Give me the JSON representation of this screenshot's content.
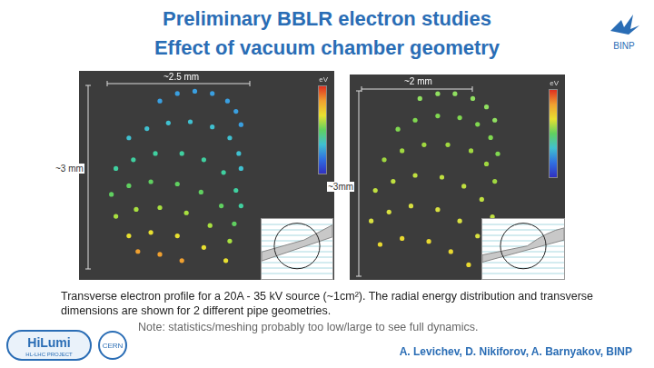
{
  "title": [
    "Preliminary BBLR electron studies",
    "Effect of vacuum chamber geometry"
  ],
  "logo": "BINP",
  "chart_data": [
    {
      "type": "scatter",
      "xlim": [
        0,
        4.4
      ],
      "ylim": [
        0,
        3.5
      ],
      "tick_labels": false,
      "grid": false,
      "marker": "circle",
      "annotations": {
        "width": "~2.5 mm",
        "height": "~3 mm",
        "colorbar": "eV"
      },
      "series": [
        {
          "color": "#3a9fe0",
          "x": [
            1.37,
            1.68,
            1.99,
            2.3,
            2.57,
            2.72,
            2.81
          ],
          "values": [
            3.04,
            3.17,
            3.21,
            3.17,
            3.04,
            2.86,
            2.63
          ]
        },
        {
          "color": "#40c0d0",
          "x": [
            0.82,
            1.14,
            1.52,
            1.91,
            2.3,
            2.61,
            2.77,
            2.81
          ],
          "values": [
            2.4,
            2.56,
            2.66,
            2.68,
            2.59,
            2.4,
            2.13,
            1.87
          ]
        },
        {
          "color": "#40d0a0",
          "x": [
            0.59,
            0.9,
            1.29,
            1.76,
            2.15,
            2.5,
            2.72,
            2.81
          ],
          "values": [
            1.87,
            2.02,
            2.13,
            2.13,
            2.02,
            1.8,
            1.49,
            1.22
          ]
        },
        {
          "color": "#60d060",
          "x": [
            0.51,
            0.82,
            1.21,
            1.68,
            2.1,
            2.46,
            2.69
          ],
          "values": [
            1.42,
            1.57,
            1.64,
            1.6,
            1.46,
            1.22,
            0.91
          ]
        },
        {
          "color": "#a8e040",
          "x": [
            0.59,
            0.95,
            1.37,
            1.84,
            2.26,
            2.61
          ],
          "values": [
            1.04,
            1.16,
            1.19,
            1.1,
            0.88,
            0.61
          ]
        },
        {
          "color": "#e8e030",
          "x": [
            0.82,
            1.21,
            1.68,
            2.15,
            2.54
          ],
          "values": [
            0.7,
            0.76,
            0.7,
            0.5,
            0.27
          ]
        },
        {
          "color": "#f0a030",
          "x": [
            0.98,
            1.37,
            1.76
          ],
          "values": [
            0.43,
            0.38,
            0.27
          ]
        }
      ]
    },
    {
      "type": "scatter",
      "xlim": [
        0,
        3.5
      ],
      "ylim": [
        0,
        3.3
      ],
      "tick_labels": false,
      "grid": false,
      "marker": "circle",
      "annotations": {
        "width": "~2 mm",
        "height": "~3mm",
        "colorbar": "eV"
      },
      "series": [
        {
          "color": "#90e060",
          "x": [
            1.12,
            1.42,
            1.71,
            2.01,
            2.24,
            2.38
          ],
          "values": [
            2.96,
            3.04,
            3.04,
            2.96,
            2.82,
            2.6
          ]
        },
        {
          "color": "#80d850",
          "x": [
            0.75,
            1.04,
            1.42,
            1.79,
            2.09,
            2.31,
            2.43
          ],
          "values": [
            2.45,
            2.6,
            2.67,
            2.64,
            2.53,
            2.31,
            2.04
          ]
        },
        {
          "color": "#a0d840",
          "x": [
            0.52,
            0.82,
            1.19,
            1.59,
            1.98,
            2.24,
            2.38
          ],
          "values": [
            1.94,
            2.09,
            2.19,
            2.19,
            2.09,
            1.87,
            1.58
          ]
        },
        {
          "color": "#c0e040",
          "x": [
            0.37,
            0.67,
            1.04,
            1.49,
            1.86,
            2.16,
            2.34
          ],
          "values": [
            1.43,
            1.58,
            1.68,
            1.65,
            1.5,
            1.28,
            0.99
          ]
        },
        {
          "color": "#d8e040",
          "x": [
            0.3,
            0.6,
            0.97,
            1.42,
            1.79,
            2.09
          ],
          "values": [
            0.92,
            1.07,
            1.17,
            1.11,
            0.92,
            0.67
          ]
        },
        {
          "color": "#e8d830",
          "x": [
            0.45,
            0.82,
            1.27,
            1.64,
            1.94
          ],
          "values": [
            0.53,
            0.63,
            0.58,
            0.41,
            0.19
          ]
        }
      ]
    }
  ],
  "caption": "Transverse electron profile for a 20A - 35 kV source (~1cm²). The radial energy distribution and transverse dimensions are shown for 2 different pipe geometries.",
  "note": "Note: statistics/meshing probably too low/large to see full dynamics.",
  "authors": "A. Levichev, D. Nikiforov, A. Barnyakov, BINP",
  "footer_logos": {
    "hilumi": "HiLumi",
    "project": "HL-LHC PROJECT",
    "cern": "CERN"
  }
}
